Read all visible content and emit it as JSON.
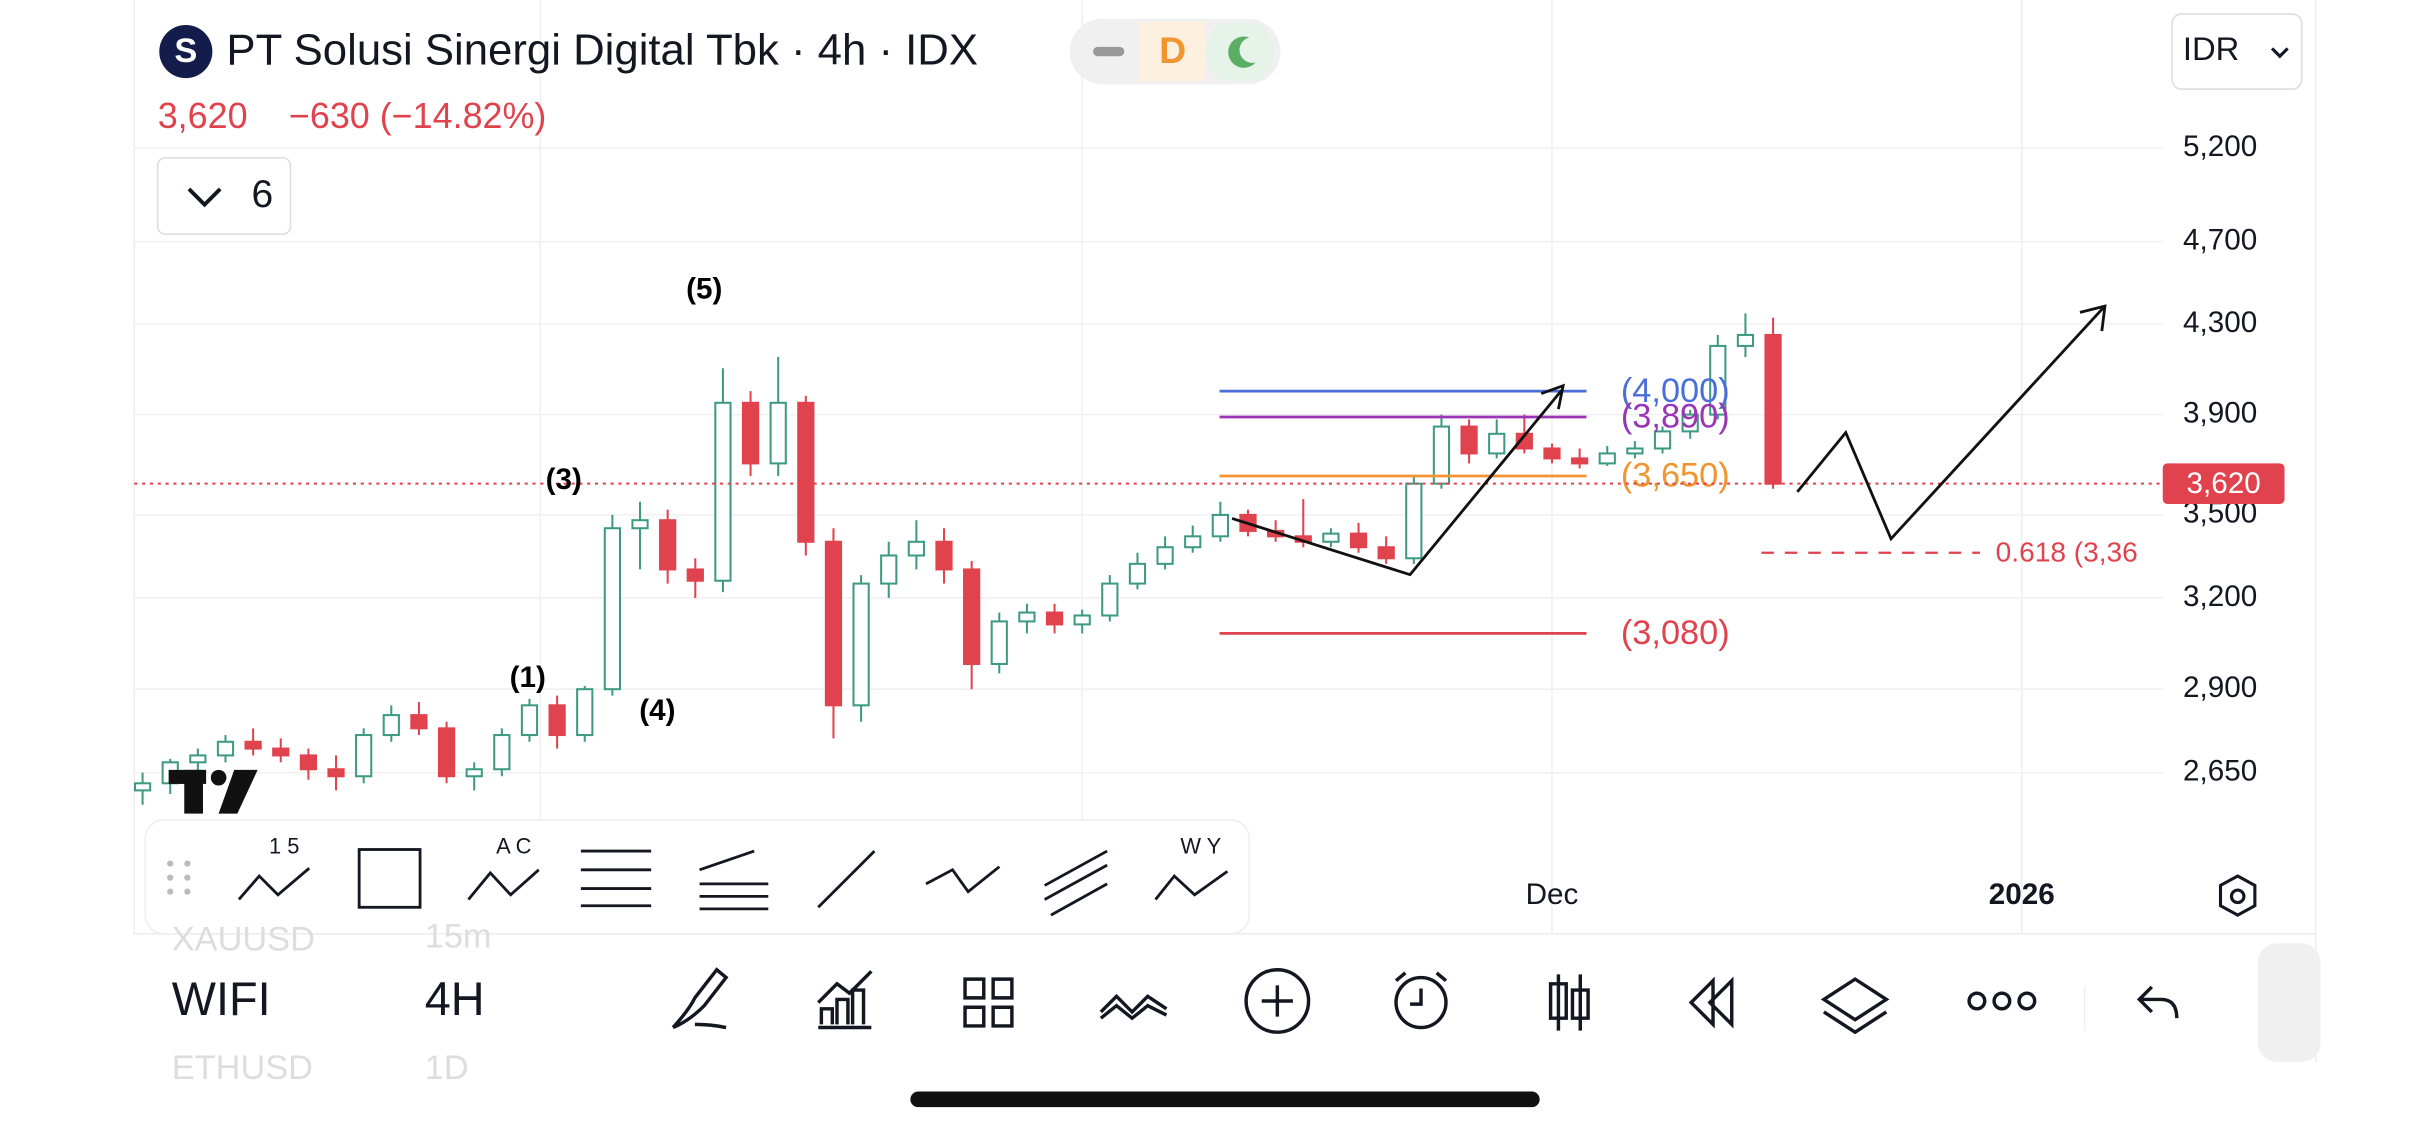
{
  "header": {
    "logo": "S",
    "title": "PT Solusi Sinergi Digital Tbk · 4h · IDX",
    "session_badge": "D",
    "price": "3,620",
    "change": "−630 (−14.82%)",
    "indicators_count": "6",
    "currency": "IDR"
  },
  "chart_data": {
    "type": "candlestick",
    "log_scale": true,
    "grid": true,
    "up_color": "#3d9a82",
    "down_color": "#e0434e",
    "open": [
      2600,
      2620,
      2680,
      2700,
      2740,
      2720,
      2700,
      2660,
      2640,
      2760,
      2820,
      2780,
      2640,
      2660,
      2760,
      2850,
      2760,
      2900,
      3450,
      3480,
      3300,
      3260,
      3950,
      3700,
      3950,
      3400,
      2850,
      3250,
      3350,
      3400,
      3300,
      2980,
      3120,
      3150,
      3110,
      3140,
      3250,
      3320,
      3380,
      3420,
      3500,
      3440,
      3420,
      3400,
      3430,
      3380,
      3340,
      3620,
      3850,
      3740,
      3820,
      3760,
      3720,
      3700,
      3740,
      3760,
      3830,
      3900,
      4200,
      4250
    ],
    "high": [
      2650,
      2690,
      2720,
      2760,
      2780,
      2750,
      2720,
      2700,
      2780,
      2850,
      2860,
      2800,
      2680,
      2780,
      2870,
      2880,
      2910,
      3500,
      3550,
      3520,
      3340,
      4100,
      4000,
      4150,
      3980,
      3450,
      3280,
      3400,
      3480,
      3450,
      3330,
      3150,
      3180,
      3180,
      3160,
      3280,
      3360,
      3420,
      3460,
      3550,
      3520,
      3480,
      3560,
      3450,
      3470,
      3420,
      3650,
      3900,
      3880,
      3880,
      3900,
      3780,
      3760,
      3770,
      3790,
      3850,
      3920,
      4250,
      4350,
      4330
    ],
    "low": [
      2560,
      2590,
      2650,
      2680,
      2700,
      2680,
      2630,
      2600,
      2620,
      2740,
      2760,
      2620,
      2600,
      2640,
      2740,
      2720,
      2740,
      2880,
      3300,
      3250,
      3200,
      3220,
      3650,
      3650,
      3350,
      2750,
      2800,
      3200,
      3300,
      3250,
      2900,
      2950,
      3080,
      3080,
      3080,
      3120,
      3230,
      3300,
      3360,
      3400,
      3420,
      3400,
      3380,
      3380,
      3360,
      3320,
      3320,
      3600,
      3700,
      3720,
      3740,
      3700,
      3680,
      3690,
      3720,
      3740,
      3800,
      3880,
      4150,
      3600
    ],
    "close": [
      2620,
      2680,
      2700,
      2740,
      2720,
      2700,
      2660,
      2640,
      2760,
      2820,
      2780,
      2640,
      2660,
      2760,
      2850,
      2760,
      2900,
      3450,
      3480,
      3300,
      3260,
      3950,
      3700,
      3950,
      3400,
      2850,
      3250,
      3350,
      3400,
      3300,
      2980,
      3120,
      3150,
      3110,
      3140,
      3250,
      3320,
      3380,
      3420,
      3500,
      3440,
      3420,
      3400,
      3430,
      3380,
      3340,
      3620,
      3850,
      3740,
      3820,
      3760,
      3720,
      3700,
      3740,
      3760,
      3830,
      3900,
      4200,
      4250,
      3620
    ],
    "xlim": [
      -0.3,
      73.1
    ],
    "xticks": [
      {
        "value": 51,
        "label": "Dec"
      },
      {
        "value": 68,
        "label": "2026"
      }
    ],
    "ylim": [
      2540,
      6100
    ],
    "yticks": [
      {
        "value": 5200,
        "label": "5,200"
      },
      {
        "value": 4700,
        "label": "4,700"
      },
      {
        "value": 4300,
        "label": "4,300"
      },
      {
        "value": 3900,
        "label": "3,900"
      },
      {
        "value": 3500,
        "label": "3,500"
      },
      {
        "value": 3200,
        "label": "3,200"
      },
      {
        "value": 2900,
        "label": "2,900"
      },
      {
        "value": 2650,
        "label": "2,650"
      }
    ],
    "last_price": {
      "value": 3620,
      "label": "3,620"
    },
    "levels": [
      {
        "value": 4000,
        "label": "(4,000)",
        "color": "#4a6fd8"
      },
      {
        "value": 3890,
        "label": "(3,890)",
        "color": "#9b35b5"
      },
      {
        "value": 3650,
        "label": "(3,650)",
        "color": "#f0952f"
      },
      {
        "value": 3080,
        "label": "(3,080)",
        "color": "#e0434e"
      }
    ],
    "retracement": {
      "value": 3360,
      "label": "0.618 (3,36"
    },
    "wave_labels": [
      "(5)",
      "(3)",
      "(1)",
      "(4)"
    ]
  },
  "toolbar": {
    "wave_12345": "1 5",
    "wave_abc": "A C",
    "wave_wxy": "W Y"
  },
  "watchlist": {
    "symbol": "WIFI",
    "interval": "4H",
    "prev_symbol": "XAUUSD",
    "prev_interval": "15m",
    "next_symbol": "ETHUSD",
    "next_interval": "1D"
  }
}
